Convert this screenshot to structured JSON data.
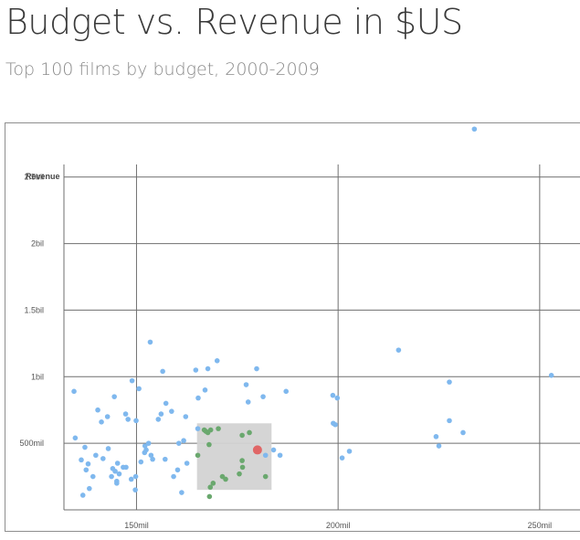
{
  "header": {
    "title": "Budget vs. Revenue in $US",
    "subtitle": "Top 100 films by budget, 2000-2009"
  },
  "colors": {
    "point": "#7fb8ee",
    "highlight_point": "#6aa86e",
    "selected_point": "#e06666",
    "brush": "#d3d3d3",
    "grid": "#6f6f6f"
  },
  "chart_data": {
    "type": "scatter",
    "title": "",
    "xlabel": "",
    "ylabel": "Revenue",
    "x_unit": "US dollars (budget)",
    "y_unit": "US dollars (revenue)",
    "xlim": [
      132000000,
      260000000
    ],
    "ylim": [
      0,
      2800000000
    ],
    "x_ticks": [
      {
        "value": 150000000,
        "label": "150mil"
      },
      {
        "value": 200000000,
        "label": "200mil"
      },
      {
        "value": 250000000,
        "label": "250mil"
      }
    ],
    "y_ticks": [
      {
        "value": 500000000,
        "label": "500mil"
      },
      {
        "value": 1000000000,
        "label": "1bil"
      },
      {
        "value": 1500000000,
        "label": "1.5bil"
      },
      {
        "value": 2000000000,
        "label": "2bil"
      },
      {
        "value": 2500000000,
        "label": "2.5bil"
      }
    ],
    "grid": true,
    "brush": {
      "x_range": [
        165000000,
        183500000
      ],
      "y_range": [
        150000000,
        650000000
      ]
    },
    "selected": {
      "x": 180000000,
      "y": 450000000
    },
    "series": [
      {
        "points": [
          [
            134500000,
            890000000
          ],
          [
            134800000,
            540000000
          ],
          [
            136300000,
            375000000
          ],
          [
            137200000,
            470000000
          ],
          [
            137500000,
            300000000
          ],
          [
            138000000,
            345000000
          ],
          [
            136700000,
            110000000
          ],
          [
            138300000,
            160000000
          ],
          [
            139200000,
            250000000
          ],
          [
            139900000,
            410000000
          ],
          [
            140400000,
            750000000
          ],
          [
            141300000,
            660000000
          ],
          [
            141700000,
            385000000
          ],
          [
            143000000,
            460000000
          ],
          [
            142800000,
            700000000
          ],
          [
            143800000,
            250000000
          ],
          [
            144100000,
            310000000
          ],
          [
            144700000,
            290000000
          ],
          [
            145100000,
            215000000
          ],
          [
            144500000,
            850000000
          ],
          [
            145700000,
            270000000
          ],
          [
            145300000,
            350000000
          ],
          [
            146700000,
            320000000
          ],
          [
            147300000,
            720000000
          ],
          [
            147900000,
            680000000
          ],
          [
            147400000,
            320000000
          ],
          [
            148900000,
            970000000
          ],
          [
            148700000,
            230000000
          ],
          [
            149700000,
            150000000
          ],
          [
            149900000,
            670000000
          ],
          [
            150600000,
            910000000
          ],
          [
            151100000,
            360000000
          ],
          [
            152100000,
            480000000
          ],
          [
            152000000,
            430000000
          ],
          [
            152400000,
            450000000
          ],
          [
            153000000,
            500000000
          ],
          [
            153600000,
            410000000
          ],
          [
            153400000,
            1260000000
          ],
          [
            154000000,
            380000000
          ],
          [
            155400000,
            680000000
          ],
          [
            156100000,
            720000000
          ],
          [
            156500000,
            1040000000
          ],
          [
            157300000,
            800000000
          ],
          [
            157100000,
            380000000
          ],
          [
            158700000,
            740000000
          ],
          [
            159200000,
            250000000
          ],
          [
            160200000,
            300000000
          ],
          [
            160500000,
            500000000
          ],
          [
            161200000,
            130000000
          ],
          [
            161700000,
            520000000
          ],
          [
            162200000,
            700000000
          ],
          [
            162500000,
            350000000
          ],
          [
            164700000,
            1050000000
          ],
          [
            165300000,
            840000000
          ],
          [
            165200000,
            610000000
          ],
          [
            167000000,
            900000000
          ],
          [
            167700000,
            1060000000
          ],
          [
            170000000,
            1120000000
          ],
          [
            177200000,
            940000000
          ],
          [
            177700000,
            810000000
          ],
          [
            179800000,
            1060000000
          ],
          [
            181400000,
            850000000
          ],
          [
            182000000,
            410000000
          ],
          [
            184000000,
            450000000
          ],
          [
            185600000,
            410000000
          ],
          [
            187100000,
            890000000
          ],
          [
            199800000,
            840000000
          ],
          [
            198800000,
            650000000
          ],
          [
            199300000,
            640000000
          ],
          [
            201000000,
            390000000
          ],
          [
            202800000,
            440000000
          ],
          [
            198700000,
            860000000
          ],
          [
            215000000,
            1200000000
          ],
          [
            224300000,
            550000000
          ],
          [
            225000000,
            480000000
          ],
          [
            227600000,
            670000000
          ],
          [
            227600000,
            960000000
          ],
          [
            231000000,
            580000000
          ],
          [
            233800000,
            2860000000
          ],
          [
            252900000,
            1010000000
          ],
          [
            145100000,
            200000000
          ],
          [
            149800000,
            250000000
          ]
        ]
      },
      {
        "points": [
          [
            165200000,
            410000000
          ],
          [
            166800000,
            600000000
          ],
          [
            167200000,
            590000000
          ],
          [
            167700000,
            580000000
          ],
          [
            168000000,
            490000000
          ],
          [
            168400000,
            600000000
          ],
          [
            169000000,
            200000000
          ],
          [
            170300000,
            610000000
          ],
          [
            171300000,
            250000000
          ],
          [
            172100000,
            230000000
          ],
          [
            175500000,
            270000000
          ],
          [
            176200000,
            560000000
          ],
          [
            176200000,
            370000000
          ],
          [
            176300000,
            320000000
          ],
          [
            178000000,
            580000000
          ],
          [
            182000000,
            250000000
          ],
          [
            168100000,
            100000000
          ],
          [
            168300000,
            170000000
          ]
        ]
      }
    ]
  }
}
